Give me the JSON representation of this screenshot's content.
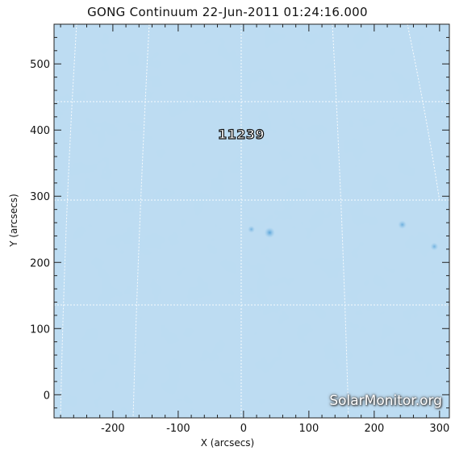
{
  "title": "GONG Continuum 22-Jun-2011 01:24:16.000",
  "axes": {
    "xlabel": "X (arcsecs)",
    "ylabel": "Y (arcsecs)",
    "x_ticks": [
      "-200",
      "-100",
      "0",
      "100",
      "200",
      "300"
    ],
    "y_ticks": [
      "0",
      "100",
      "200",
      "300",
      "400",
      "500"
    ],
    "x_range": [
      -290,
      315
    ],
    "y_range": [
      -35,
      560
    ]
  },
  "image": {
    "background_color": "#bcdcf2",
    "grid_color": "#ffffff",
    "spots": [
      {
        "x": 40,
        "y": 245,
        "level": 0.9
      },
      {
        "x": 12,
        "y": 250,
        "level": 0.4
      },
      {
        "x": 243,
        "y": 257,
        "level": 0.6
      },
      {
        "x": 292,
        "y": 224,
        "level": 0.5
      }
    ]
  },
  "region_label": "11239",
  "watermark": "SolarMonitor.org"
}
